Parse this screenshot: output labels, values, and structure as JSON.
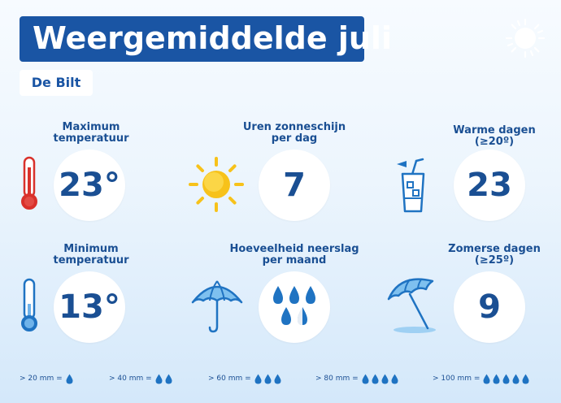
{
  "title": "Weergemiddelde juli",
  "location": "De Bilt",
  "stats": {
    "max_temp": {
      "label_line1": "Maximum",
      "label_line2": "temperatuur",
      "value": "23°",
      "icon": "thermometer-hot-icon"
    },
    "sunshine": {
      "label_line1": "Uren zonneschijn",
      "label_line2": "per dag",
      "value": "7",
      "icon": "sun-icon"
    },
    "warm_days": {
      "label_line1": "Warme dagen",
      "label_line2": "(≥20º)",
      "value": "23",
      "icon": "cold-drink-icon"
    },
    "min_temp": {
      "label_line1": "Minimum",
      "label_line2": "temperatuur",
      "value": "13°",
      "icon": "thermometer-cold-icon"
    },
    "rainfall": {
      "label_line1": "Hoeveelheid neerslag",
      "label_line2": "per maand",
      "value_drops": 3,
      "value_partial": true,
      "icon": "umbrella-icon"
    },
    "summer_days": {
      "label_line1": "Zomerse dagen",
      "label_line2": "(≥25º)",
      "value": "9",
      "icon": "beach-umbrella-icon"
    }
  },
  "legend": [
    {
      "label": "> 20 mm =",
      "drops": 1
    },
    {
      "label": "> 40 mm =",
      "drops": 2
    },
    {
      "label": "> 60 mm =",
      "drops": 3
    },
    {
      "label": "> 80 mm =",
      "drops": 4
    },
    {
      "label": "> 100 mm =",
      "drops": 5
    }
  ],
  "colors": {
    "brand_blue": "#1a55a4",
    "drop_blue": "#1f73c2",
    "thermo_red": "#d9312b",
    "sun_yellow": "#f7c21a"
  }
}
